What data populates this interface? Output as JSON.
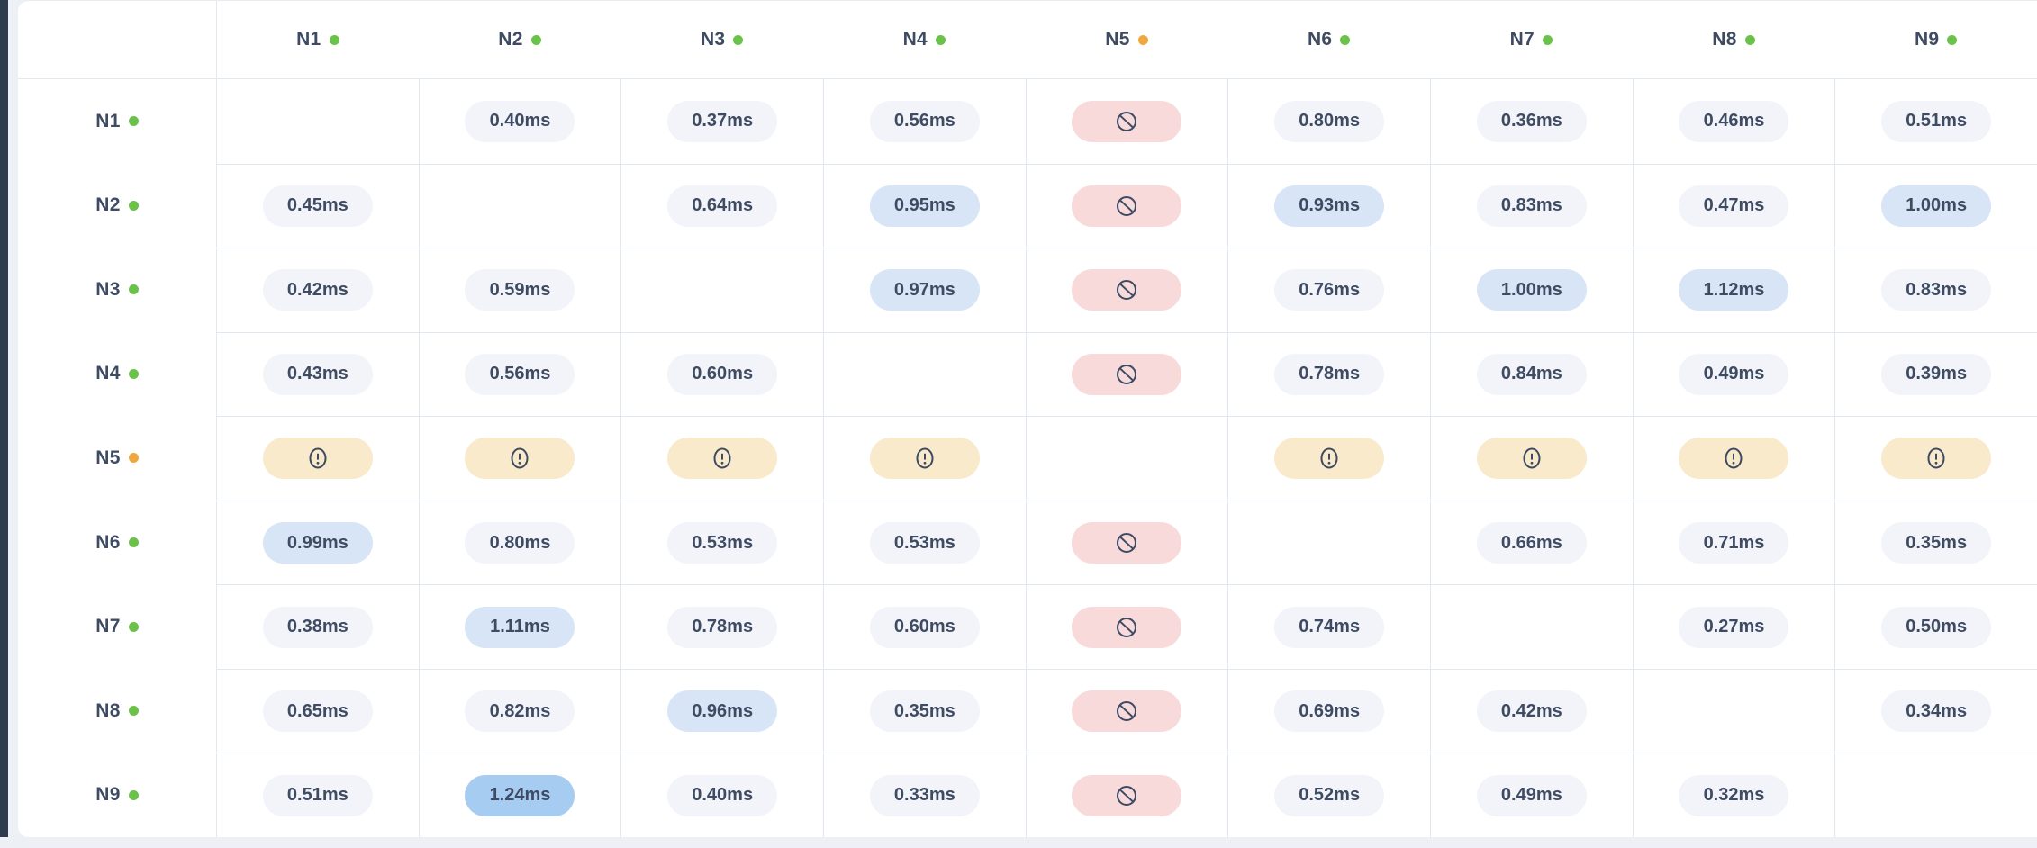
{
  "colors": {
    "page_bg": "#edf1f6",
    "sidebar_bg": "#2e3a4e",
    "card_bg": "#ffffff",
    "grid_line": "#e2e8f0",
    "text": "#3e4b63",
    "icon": "#3d4a63",
    "status_online": "#6bc24a",
    "status_degraded": "#f0a73e",
    "pill_default_bg": "#f2f4f9",
    "pill_heat1_bg": "#d7e5f6",
    "pill_heat2_bg": "#a7ccf2",
    "pill_blocked_bg": "#f8dada",
    "pill_warn_bg": "#f9eacc"
  },
  "matrix": {
    "corner_label": "",
    "columns": [
      {
        "label": "N1",
        "status": "online"
      },
      {
        "label": "N2",
        "status": "online"
      },
      {
        "label": "N3",
        "status": "online"
      },
      {
        "label": "N4",
        "status": "online"
      },
      {
        "label": "N5",
        "status": "degraded"
      },
      {
        "label": "N6",
        "status": "online"
      },
      {
        "label": "N7",
        "status": "online"
      },
      {
        "label": "N8",
        "status": "online"
      },
      {
        "label": "N9",
        "status": "online"
      }
    ],
    "rows": [
      {
        "label": "N1",
        "status": "online",
        "cells": [
          {
            "type": "self"
          },
          {
            "type": "value",
            "text": "0.40ms",
            "heat": 0
          },
          {
            "type": "value",
            "text": "0.37ms",
            "heat": 0
          },
          {
            "type": "value",
            "text": "0.56ms",
            "heat": 0
          },
          {
            "type": "blocked"
          },
          {
            "type": "value",
            "text": "0.80ms",
            "heat": 0
          },
          {
            "type": "value",
            "text": "0.36ms",
            "heat": 0
          },
          {
            "type": "value",
            "text": "0.46ms",
            "heat": 0
          },
          {
            "type": "value",
            "text": "0.51ms",
            "heat": 0
          }
        ]
      },
      {
        "label": "N2",
        "status": "online",
        "cells": [
          {
            "type": "value",
            "text": "0.45ms",
            "heat": 0
          },
          {
            "type": "self"
          },
          {
            "type": "value",
            "text": "0.64ms",
            "heat": 0
          },
          {
            "type": "value",
            "text": "0.95ms",
            "heat": 1
          },
          {
            "type": "blocked"
          },
          {
            "type": "value",
            "text": "0.93ms",
            "heat": 1
          },
          {
            "type": "value",
            "text": "0.83ms",
            "heat": 0
          },
          {
            "type": "value",
            "text": "0.47ms",
            "heat": 0
          },
          {
            "type": "value",
            "text": "1.00ms",
            "heat": 1
          }
        ]
      },
      {
        "label": "N3",
        "status": "online",
        "cells": [
          {
            "type": "value",
            "text": "0.42ms",
            "heat": 0
          },
          {
            "type": "value",
            "text": "0.59ms",
            "heat": 0
          },
          {
            "type": "self"
          },
          {
            "type": "value",
            "text": "0.97ms",
            "heat": 1
          },
          {
            "type": "blocked"
          },
          {
            "type": "value",
            "text": "0.76ms",
            "heat": 0
          },
          {
            "type": "value",
            "text": "1.00ms",
            "heat": 1
          },
          {
            "type": "value",
            "text": "1.12ms",
            "heat": 1
          },
          {
            "type": "value",
            "text": "0.83ms",
            "heat": 0
          }
        ]
      },
      {
        "label": "N4",
        "status": "online",
        "cells": [
          {
            "type": "value",
            "text": "0.43ms",
            "heat": 0
          },
          {
            "type": "value",
            "text": "0.56ms",
            "heat": 0
          },
          {
            "type": "value",
            "text": "0.60ms",
            "heat": 0
          },
          {
            "type": "self"
          },
          {
            "type": "blocked"
          },
          {
            "type": "value",
            "text": "0.78ms",
            "heat": 0
          },
          {
            "type": "value",
            "text": "0.84ms",
            "heat": 0
          },
          {
            "type": "value",
            "text": "0.49ms",
            "heat": 0
          },
          {
            "type": "value",
            "text": "0.39ms",
            "heat": 0
          }
        ]
      },
      {
        "label": "N5",
        "status": "degraded",
        "cells": [
          {
            "type": "warn"
          },
          {
            "type": "warn"
          },
          {
            "type": "warn"
          },
          {
            "type": "warn"
          },
          {
            "type": "self"
          },
          {
            "type": "warn"
          },
          {
            "type": "warn"
          },
          {
            "type": "warn"
          },
          {
            "type": "warn"
          }
        ]
      },
      {
        "label": "N6",
        "status": "online",
        "cells": [
          {
            "type": "value",
            "text": "0.99ms",
            "heat": 1
          },
          {
            "type": "value",
            "text": "0.80ms",
            "heat": 0
          },
          {
            "type": "value",
            "text": "0.53ms",
            "heat": 0
          },
          {
            "type": "value",
            "text": "0.53ms",
            "heat": 0
          },
          {
            "type": "blocked"
          },
          {
            "type": "self"
          },
          {
            "type": "value",
            "text": "0.66ms",
            "heat": 0
          },
          {
            "type": "value",
            "text": "0.71ms",
            "heat": 0
          },
          {
            "type": "value",
            "text": "0.35ms",
            "heat": 0
          }
        ]
      },
      {
        "label": "N7",
        "status": "online",
        "cells": [
          {
            "type": "value",
            "text": "0.38ms",
            "heat": 0
          },
          {
            "type": "value",
            "text": "1.11ms",
            "heat": 1
          },
          {
            "type": "value",
            "text": "0.78ms",
            "heat": 0
          },
          {
            "type": "value",
            "text": "0.60ms",
            "heat": 0
          },
          {
            "type": "blocked"
          },
          {
            "type": "value",
            "text": "0.74ms",
            "heat": 0
          },
          {
            "type": "self"
          },
          {
            "type": "value",
            "text": "0.27ms",
            "heat": 0
          },
          {
            "type": "value",
            "text": "0.50ms",
            "heat": 0
          }
        ]
      },
      {
        "label": "N8",
        "status": "online",
        "cells": [
          {
            "type": "value",
            "text": "0.65ms",
            "heat": 0
          },
          {
            "type": "value",
            "text": "0.82ms",
            "heat": 0
          },
          {
            "type": "value",
            "text": "0.96ms",
            "heat": 1
          },
          {
            "type": "value",
            "text": "0.35ms",
            "heat": 0
          },
          {
            "type": "blocked"
          },
          {
            "type": "value",
            "text": "0.69ms",
            "heat": 0
          },
          {
            "type": "value",
            "text": "0.42ms",
            "heat": 0
          },
          {
            "type": "self"
          },
          {
            "type": "value",
            "text": "0.34ms",
            "heat": 0
          }
        ]
      },
      {
        "label": "N9",
        "status": "online",
        "cells": [
          {
            "type": "value",
            "text": "0.51ms",
            "heat": 0
          },
          {
            "type": "value",
            "text": "1.24ms",
            "heat": 2
          },
          {
            "type": "value",
            "text": "0.40ms",
            "heat": 0
          },
          {
            "type": "value",
            "text": "0.33ms",
            "heat": 0
          },
          {
            "type": "blocked"
          },
          {
            "type": "value",
            "text": "0.52ms",
            "heat": 0
          },
          {
            "type": "value",
            "text": "0.49ms",
            "heat": 0
          },
          {
            "type": "value",
            "text": "0.32ms",
            "heat": 0
          },
          {
            "type": "self"
          }
        ]
      }
    ]
  }
}
